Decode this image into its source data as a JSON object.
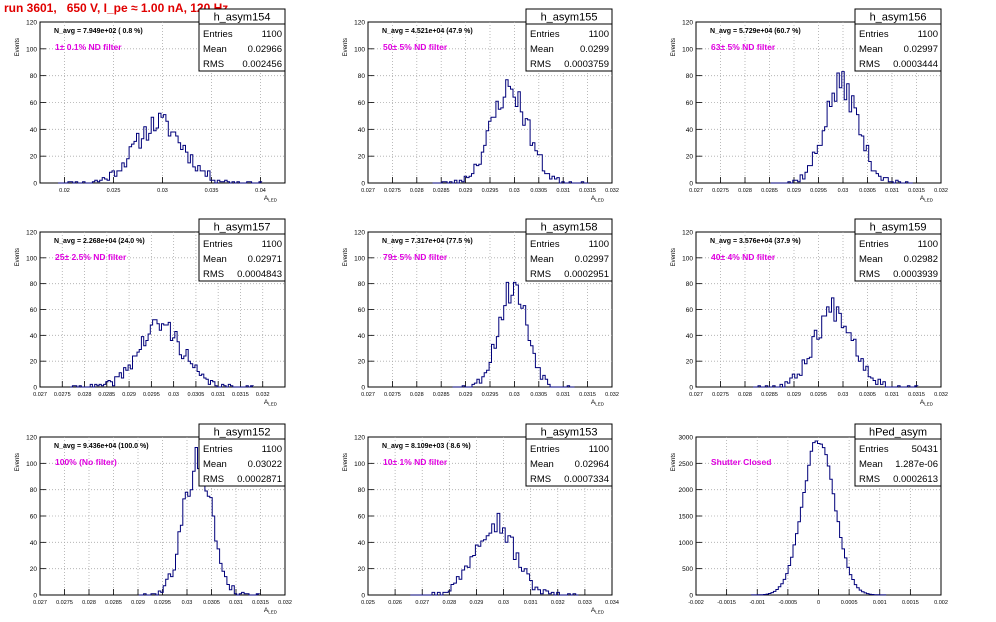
{
  "header": {
    "run_title": "run 3601,   650 V, I_pe ≈ 1.00 nA, 120 Hz"
  },
  "chart_data": [
    {
      "type": "bar",
      "name": "h_asym154",
      "navg": "N_avg = 7.949e+02 ( 0.8 %)",
      "filter": "1± 0.1% ND filter",
      "stats": {
        "entries": "1100",
        "mean": "0.02966",
        "rms": "0.002456"
      },
      "ylabel": "Events",
      "xlabel": "A_LED",
      "xlim": [
        0.0175,
        0.0425
      ],
      "ylim": [
        0,
        120
      ],
      "xticks": [
        "0.02",
        "0.025",
        "0.03",
        "0.035",
        "0.04"
      ],
      "xtick_values": [
        0.02,
        0.025,
        0.03,
        0.035,
        0.04
      ],
      "yticks": [
        0,
        20,
        40,
        60,
        80,
        100,
        120
      ],
      "hist": {
        "mean": 0.02966,
        "sigma": 0.002456,
        "peak": 45,
        "bin": 0.00025,
        "seed": 11
      }
    },
    {
      "type": "bar",
      "name": "h_asym155",
      "navg": "N_avg = 4.521e+04 (47.9 %)",
      "filter": "50± 5% ND filter",
      "stats": {
        "entries": "1100",
        "mean": "0.0299",
        "rms": "0.0003759"
      },
      "ylabel": "Events",
      "xlabel": "A_LED",
      "xlim": [
        0.027,
        0.032
      ],
      "ylim": [
        0,
        120
      ],
      "xticks": [
        "0.027",
        "0.0275",
        "0.028",
        "0.0285",
        "0.029",
        "0.0295",
        "0.03",
        "0.0305",
        "0.031",
        "0.0315",
        "0.032"
      ],
      "xtick_values": [
        0.027,
        0.0275,
        0.028,
        0.0285,
        0.029,
        0.0295,
        0.03,
        0.0305,
        0.031,
        0.0315,
        0.032
      ],
      "yticks": [
        0,
        20,
        40,
        60,
        80,
        100,
        120
      ],
      "hist": {
        "mean": 0.0299,
        "sigma": 0.000376,
        "peak": 70,
        "bin": 5e-05,
        "seed": 23
      }
    },
    {
      "type": "bar",
      "name": "h_asym156",
      "navg": "N_avg = 5.729e+04 (60.7 %)",
      "filter": "63± 5% ND filter",
      "stats": {
        "entries": "1100",
        "mean": "0.02997",
        "rms": "0.0003444"
      },
      "ylabel": "Events",
      "xlabel": "A_LED",
      "xlim": [
        0.027,
        0.032
      ],
      "ylim": [
        0,
        120
      ],
      "xticks": [
        "0.027",
        "0.0275",
        "0.028",
        "0.0285",
        "0.029",
        "0.0295",
        "0.03",
        "0.0305",
        "0.031",
        "0.0315",
        "0.032"
      ],
      "xtick_values": [
        0.027,
        0.0275,
        0.028,
        0.0285,
        0.029,
        0.0295,
        0.03,
        0.0305,
        0.031,
        0.0315,
        0.032
      ],
      "yticks": [
        0,
        20,
        40,
        60,
        80,
        100,
        120
      ],
      "hist": {
        "mean": 0.02997,
        "sigma": 0.000344,
        "peak": 73,
        "bin": 5e-05,
        "seed": 37
      }
    },
    {
      "type": "bar",
      "name": "h_asym157",
      "navg": "N_avg = 2.268e+04 (24.0 %)",
      "filter": "25± 2.5% ND filter",
      "stats": {
        "entries": "1100",
        "mean": "0.02971",
        "rms": "0.0004843"
      },
      "ylabel": "Events",
      "xlabel": "A_LED",
      "xlim": [
        0.027,
        0.0325
      ],
      "ylim": [
        0,
        120
      ],
      "xticks": [
        "0.027",
        "0.0275",
        "0.028",
        "0.0285",
        "0.029",
        "0.0295",
        "0.03",
        "0.0305",
        "0.031",
        "0.0315",
        "0.032"
      ],
      "xtick_values": [
        0.027,
        0.0275,
        0.028,
        0.0285,
        0.029,
        0.0295,
        0.03,
        0.0305,
        0.031,
        0.0315,
        0.032
      ],
      "yticks": [
        0,
        20,
        40,
        60,
        80,
        100,
        120
      ],
      "hist": {
        "mean": 0.02971,
        "sigma": 0.000484,
        "peak": 48,
        "bin": 5e-05,
        "seed": 41
      }
    },
    {
      "type": "bar",
      "name": "h_asym158",
      "navg": "N_avg = 7.317e+04 (77.5 %)",
      "filter": "79± 5% ND filter",
      "stats": {
        "entries": "1100",
        "mean": "0.02997",
        "rms": "0.0002951"
      },
      "ylabel": "Events",
      "xlabel": "A_LED",
      "xlim": [
        0.027,
        0.032
      ],
      "ylim": [
        0,
        120
      ],
      "xticks": [
        "0.027",
        "0.0275",
        "0.028",
        "0.0285",
        "0.029",
        "0.0295",
        "0.03",
        "0.0305",
        "0.031",
        "0.0315",
        "0.032"
      ],
      "xtick_values": [
        0.027,
        0.0275,
        0.028,
        0.0285,
        0.029,
        0.0295,
        0.03,
        0.0305,
        0.031,
        0.0315,
        0.032
      ],
      "yticks": [
        0,
        20,
        40,
        60,
        80,
        100,
        120
      ],
      "hist": {
        "mean": 0.02997,
        "sigma": 0.000295,
        "peak": 77,
        "bin": 5e-05,
        "seed": 53
      }
    },
    {
      "type": "bar",
      "name": "h_asym159",
      "navg": "N_avg = 3.576e+04 (37.9 %)",
      "filter": "40± 4% ND filter",
      "stats": {
        "entries": "1100",
        "mean": "0.02982",
        "rms": "0.0003939"
      },
      "ylabel": "Events",
      "xlabel": "A_LED",
      "xlim": [
        0.027,
        0.032
      ],
      "ylim": [
        0,
        120
      ],
      "xticks": [
        "0.027",
        "0.0275",
        "0.028",
        "0.0285",
        "0.029",
        "0.0295",
        "0.03",
        "0.0305",
        "0.031",
        "0.0315",
        "0.032"
      ],
      "xtick_values": [
        0.027,
        0.0275,
        0.028,
        0.0285,
        0.029,
        0.0295,
        0.03,
        0.0305,
        0.031,
        0.0315,
        0.032
      ],
      "yticks": [
        0,
        20,
        40,
        60,
        80,
        100,
        120
      ],
      "hist": {
        "mean": 0.02982,
        "sigma": 0.000394,
        "peak": 61,
        "bin": 5e-05,
        "seed": 67
      }
    },
    {
      "type": "bar",
      "name": "h_asym152",
      "navg": "N_avg = 9.436e+04 (100.0 %)",
      "filter": "100% (No filter)",
      "stats": {
        "entries": "1100",
        "mean": "0.03022",
        "rms": "0.0002871"
      },
      "ylabel": "Events",
      "xlabel": "A_LED",
      "xlim": [
        0.027,
        0.032
      ],
      "ylim": [
        0,
        120
      ],
      "xticks": [
        "0.027",
        "0.0275",
        "0.028",
        "0.0285",
        "0.029",
        "0.0295",
        "0.03",
        "0.0305",
        "0.031",
        "0.0315",
        "0.032"
      ],
      "xtick_values": [
        0.027,
        0.0275,
        0.028,
        0.0285,
        0.029,
        0.0295,
        0.03,
        0.0305,
        0.031,
        0.0315,
        0.032
      ],
      "yticks": [
        0,
        20,
        40,
        60,
        80,
        100,
        120
      ],
      "hist": {
        "mean": 0.03022,
        "sigma": 0.000287,
        "peak": 102,
        "bin": 5e-05,
        "seed": 79
      }
    },
    {
      "type": "bar",
      "name": "h_asym153",
      "navg": "N_avg = 8.109e+03 ( 8.6 %)",
      "filter": "10± 1% ND filter",
      "stats": {
        "entries": "1100",
        "mean": "0.02964",
        "rms": "0.0007334"
      },
      "ylabel": "Events",
      "xlabel": "A_LED",
      "xlim": [
        0.025,
        0.034
      ],
      "ylim": [
        0,
        120
      ],
      "xticks": [
        "0.025",
        "0.026",
        "0.027",
        "0.028",
        "0.029",
        "0.03",
        "0.031",
        "0.032",
        "0.033",
        "0.034"
      ],
      "xtick_values": [
        0.025,
        0.026,
        0.027,
        0.028,
        0.029,
        0.03,
        0.031,
        0.032,
        0.033,
        0.034
      ],
      "yticks": [
        0,
        20,
        40,
        60,
        80,
        100,
        120
      ],
      "hist": {
        "mean": 0.02964,
        "sigma": 0.000733,
        "peak": 57,
        "bin": 0.0001,
        "seed": 97
      }
    },
    {
      "type": "bar",
      "name": "hPed_asym",
      "navg": "",
      "filter": "Shutter Closed",
      "stats": {
        "entries": "50431",
        "mean": "1.287e-06",
        "rms": "0.0002613"
      },
      "ylabel": "Events",
      "xlabel": "",
      "xlim": [
        -0.002,
        0.002
      ],
      "ylim": [
        0,
        3000
      ],
      "xticks": [
        "-0.002",
        "-0.0015",
        "-0.001",
        "-0.0005",
        "0",
        "0.0005",
        "0.001",
        "0.0015",
        "0.002"
      ],
      "xtick_values": [
        -0.002,
        -0.0015,
        -0.001,
        -0.0005,
        0,
        0.0005,
        0.001,
        0.0015,
        0.002
      ],
      "yticks": [
        0,
        500,
        1000,
        1500,
        2000,
        2500,
        3000
      ],
      "hist": {
        "mean": 0.0,
        "sigma": 0.000261,
        "peak": 2950,
        "bin": 4e-05,
        "seed": 101,
        "smooth": true
      }
    }
  ],
  "stat_labels": {
    "entries": "Entries",
    "mean": "Mean",
    "rms": "RMS"
  }
}
